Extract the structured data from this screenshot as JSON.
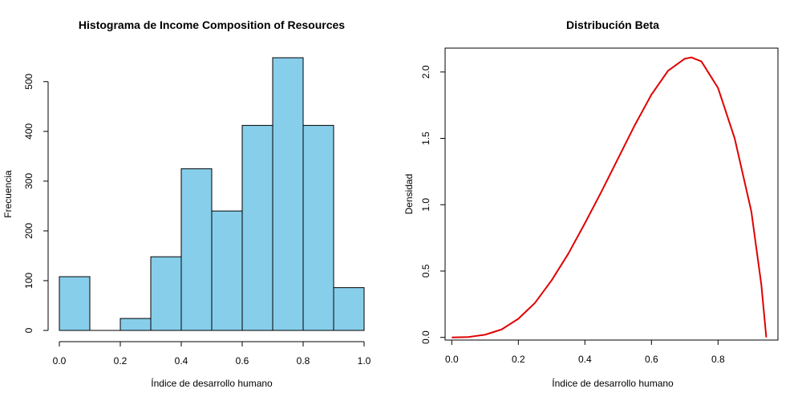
{
  "chart_data": [
    {
      "type": "bar",
      "title": "Histograma de Income Composition of Resources",
      "xlabel": "Índice de desarrollo humano",
      "ylabel": "Frecuencia",
      "bins": [
        {
          "from": 0.0,
          "to": 0.1,
          "count": 108
        },
        {
          "from": 0.1,
          "to": 0.2,
          "count": 0
        },
        {
          "from": 0.2,
          "to": 0.3,
          "count": 24
        },
        {
          "from": 0.3,
          "to": 0.4,
          "count": 148
        },
        {
          "from": 0.4,
          "to": 0.5,
          "count": 325
        },
        {
          "from": 0.5,
          "to": 0.6,
          "count": 240
        },
        {
          "from": 0.6,
          "to": 0.7,
          "count": 412
        },
        {
          "from": 0.7,
          "to": 0.8,
          "count": 548
        },
        {
          "from": 0.8,
          "to": 0.9,
          "count": 412
        },
        {
          "from": 0.9,
          "to": 1.0,
          "count": 86
        }
      ],
      "xlim": [
        0,
        1
      ],
      "ylim": [
        0,
        548
      ],
      "xticks": [
        "0.0",
        "0.2",
        "0.4",
        "0.6",
        "0.8",
        "1.0"
      ],
      "yticks": [
        "0",
        "100",
        "200",
        "300",
        "400",
        "500"
      ],
      "bar_color": "#87CEEB",
      "grid": false,
      "legend": "none"
    },
    {
      "type": "line",
      "title": "Distribución Beta",
      "xlabel": "Índice de desarrollo humano",
      "ylabel": "Densidad",
      "series": [
        {
          "color": "#e00000",
          "x": [
            0.0,
            0.05,
            0.1,
            0.15,
            0.2,
            0.25,
            0.3,
            0.35,
            0.4,
            0.45,
            0.5,
            0.55,
            0.6,
            0.65,
            0.7,
            0.72,
            0.75,
            0.8,
            0.85,
            0.9,
            0.93,
            0.945
          ],
          "y": [
            0.0,
            0.003,
            0.02,
            0.06,
            0.14,
            0.26,
            0.43,
            0.63,
            0.86,
            1.1,
            1.35,
            1.6,
            1.83,
            2.01,
            2.1,
            2.11,
            2.08,
            1.88,
            1.5,
            0.95,
            0.4,
            0.0
          ]
        }
      ],
      "xlim": [
        -0.02,
        0.98
      ],
      "ylim": [
        -0.02,
        2.18
      ],
      "xticks": [
        "0.0",
        "0.2",
        "0.4",
        "0.6",
        "0.8"
      ],
      "yticks": [
        "0.0",
        "0.5",
        "1.0",
        "1.5",
        "2.0"
      ],
      "grid": false,
      "legend": "none"
    }
  ]
}
